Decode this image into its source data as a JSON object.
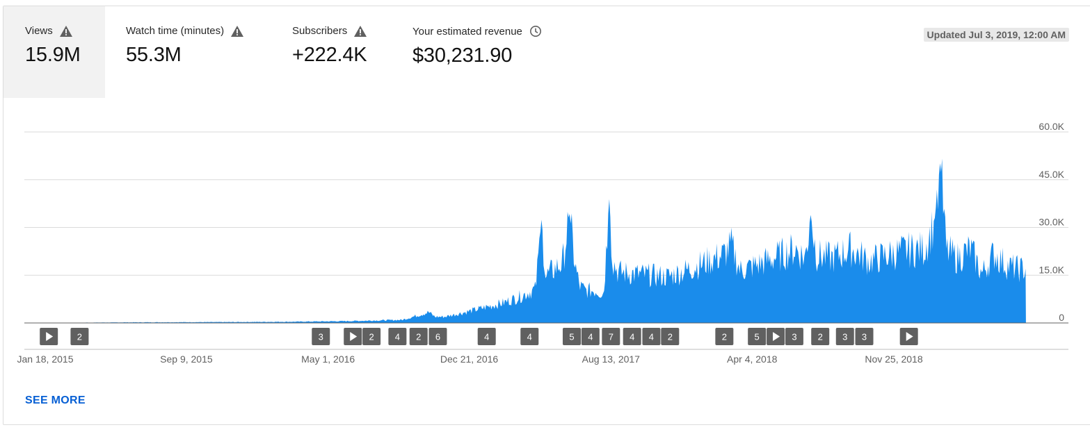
{
  "metrics": [
    {
      "label": "Views",
      "value": "15.9M",
      "icon": "warning-icon",
      "selected": true
    },
    {
      "label": "Watch time (minutes)",
      "value": "55.3M",
      "icon": "warning-icon",
      "selected": false
    },
    {
      "label": "Subscribers",
      "value": "+222.4K",
      "icon": "warning-icon",
      "selected": false
    },
    {
      "label": "Your estimated revenue",
      "value": "$30,231.90",
      "icon": "clock-icon",
      "selected": false
    }
  ],
  "updated_label": "Updated Jul 3, 2019, 12:00 AM",
  "see_more_label": "SEE MORE",
  "colors": {
    "area": "#1a8ceb",
    "marker": "#606060",
    "grid": "#dadada",
    "link": "#065fd4"
  },
  "chart_data": {
    "type": "area",
    "ylim": [
      0,
      60000
    ],
    "y_ticks": [
      "0",
      "15.0K",
      "30.0K",
      "45.0K",
      "60.0K"
    ],
    "x_tick_labels": [
      "Jan 18, 2015",
      "Sep 9, 2015",
      "May 1, 2016",
      "Dec 21, 2016",
      "Aug 13, 2017",
      "Apr 4, 2018",
      "Nov 25, 2018"
    ],
    "x_range": [
      "2014-12-31",
      "2019-07-02"
    ],
    "series": [
      {
        "x": [
          "2014-12-31",
          "2015-06-01",
          "2015-12-01",
          "2016-03-01",
          "2016-06-01",
          "2016-09-01",
          "2016-10-15",
          "2016-10-25",
          "2016-11-10",
          "2016-12-15",
          "2017-01-15",
          "2017-02-15",
          "2017-03-15",
          "2017-04-10",
          "2017-04-20",
          "2017-04-27",
          "2017-05-05",
          "2017-05-25",
          "2017-06-05",
          "2017-06-15",
          "2017-06-22",
          "2017-07-01",
          "2017-07-20",
          "2017-08-01",
          "2017-08-10",
          "2017-08-16",
          "2017-08-25",
          "2017-09-15",
          "2017-10-15",
          "2017-11-15",
          "2017-12-15",
          "2018-01-15",
          "2018-02-15",
          "2018-03-01",
          "2018-03-15",
          "2018-04-15",
          "2018-05-15",
          "2018-06-15",
          "2018-07-01",
          "2018-07-10",
          "2018-07-20",
          "2018-08-15",
          "2018-09-15",
          "2018-10-15",
          "2018-11-15",
          "2018-12-15",
          "2019-01-15",
          "2019-02-01",
          "2019-02-10",
          "2019-02-20",
          "2019-03-10",
          "2019-04-01",
          "2019-04-20",
          "2019-05-10",
          "2019-06-01",
          "2019-06-20",
          "2019-07-02"
        ],
        "y": [
          0,
          200,
          300,
          400,
          600,
          1000,
          3500,
          2000,
          2000,
          3500,
          5000,
          6500,
          8500,
          11000,
          33000,
          15000,
          16500,
          19500,
          35000,
          18000,
          12000,
          10500,
          10500,
          9500,
          39500,
          20000,
          16500,
          16000,
          15500,
          15000,
          17000,
          19500,
          22000,
          25000,
          17000,
          19000,
          21500,
          24000,
          21000,
          34000,
          22000,
          21000,
          24000,
          20000,
          22000,
          23500,
          24000,
          33000,
          51000,
          23500,
          21000,
          24000,
          16000,
          22500,
          18500,
          17500,
          17500
        ]
      }
    ],
    "annotations": [
      {
        "date": "2015-01-24",
        "label": "▶"
      },
      {
        "date": "2015-03-16",
        "label": "2"
      },
      {
        "date": "2016-04-19",
        "label": "3"
      },
      {
        "date": "2016-06-11",
        "label": "▶"
      },
      {
        "date": "2016-07-12",
        "label": "2"
      },
      {
        "date": "2016-08-24",
        "label": "4"
      },
      {
        "date": "2016-09-28",
        "label": "2"
      },
      {
        "date": "2016-10-30",
        "label": "6"
      },
      {
        "date": "2017-01-19",
        "label": "4"
      },
      {
        "date": "2017-03-31",
        "label": "4"
      },
      {
        "date": "2017-06-09",
        "label": "5"
      },
      {
        "date": "2017-07-10",
        "label": "4"
      },
      {
        "date": "2017-08-13",
        "label": "7"
      },
      {
        "date": "2017-09-17",
        "label": "4"
      },
      {
        "date": "2017-10-19",
        "label": "4"
      },
      {
        "date": "2017-11-19",
        "label": "2"
      },
      {
        "date": "2018-02-17",
        "label": "2"
      },
      {
        "date": "2018-04-12",
        "label": "5"
      },
      {
        "date": "2018-05-13",
        "label": "▶"
      },
      {
        "date": "2018-06-13",
        "label": "3"
      },
      {
        "date": "2018-07-26",
        "label": "2"
      },
      {
        "date": "2018-09-05",
        "label": "3"
      },
      {
        "date": "2018-10-07",
        "label": "3"
      },
      {
        "date": "2018-12-20",
        "label": "▶"
      }
    ]
  }
}
